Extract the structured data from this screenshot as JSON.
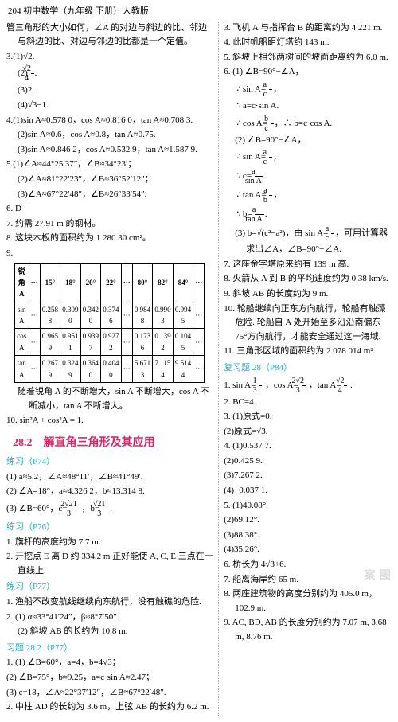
{
  "header": "204 初中数学（九年级 下册）· 人教版",
  "left": {
    "intro": "管三角形的大小如何，∠A 的对边与斜边的比、邻边与斜边的比、对边与邻边的比都是一个定值。",
    "q3": {
      "num": "3.",
      "p1": "(1)√2.",
      "p2_pre": "(2)",
      "p2_frac_n": "√2",
      "p2_frac_d": "4",
      "p2_post": ".",
      "p3": "(3)2.",
      "p4": "(4)√3−1."
    },
    "q4": {
      "num": "4.",
      "p1": "(1)sin A≈0.578 0，cos A≈0.816 0，tan A≈0.708 3.",
      "p2": "(2)sin A≈0.6，cos A≈0.8，tan A≈0.75.",
      "p3": "(3)sin A≈0.846 2，cos A≈0.532 9，tan A≈1.587 9."
    },
    "q5": {
      "num": "5.",
      "p1": "(1)∠A≈44°25′37″，∠B≈34°23′；",
      "p2": "(2)∠A≈81°22′23″，∠B≈36°52′12″；",
      "p3": "(3)∠A≈67°22′48″，∠B≈26°33′54″."
    },
    "q6": "6. D",
    "q7": "7. 约需 27.91 m 的钢材。",
    "q8": "8. 这块木板的面积约为 1 280.30 cm²。",
    "q9": "9.",
    "table": {
      "head": [
        "锐角 A",
        "···",
        "15°",
        "18°",
        "20°",
        "22°",
        "···",
        "80°",
        "82°",
        "84°",
        "···"
      ],
      "rows": [
        [
          "sin A",
          "···",
          "0.258 8",
          "0.309 0",
          "0.342 0",
          "0.374 6",
          "···",
          "0.984 8",
          "0.990 3",
          "0.994 5",
          "···"
        ],
        [
          "cos A",
          "···",
          "0.965 9",
          "0.951 1",
          "0.939 7",
          "0.927 2",
          "···",
          "0.173 6",
          "0.139 2",
          "0.104 5",
          "···"
        ],
        [
          "tan A",
          "···",
          "0.267 9",
          "0.324 9",
          "0.364 0",
          "0.404 0",
          "···",
          "5.671 3",
          "7.115 4",
          "9.514 4",
          "···"
        ]
      ]
    },
    "q9_note": "随着锐角 A 的不断增大，sin A 不断增大，cos A 不断减小，tan A 不断增大。",
    "q10": "10. sin²A + cos²A = 1.",
    "section_title": "28.2　解直角三角形及其应用",
    "practice74_label": "练习（P74）",
    "practice74": {
      "p1": "(1) a≈5.2，∠A≈48°11′，∠B≈41°49′.",
      "p2_pre": "(2) ∠A=18°，a≈4.326 2，b≈13.314 8.",
      "p2b_pre": "(3) ∠B=60°，c=",
      "p2b_f1_n": "2√21",
      "p2b_f1_d": "3",
      "p2b_mid": "，b=",
      "p2b_f2_n": "√21",
      "p2b_f2_d": "3",
      "p2b_post": "."
    },
    "practice76_label": "练习（P76）",
    "practice76": {
      "p1": "1. 旗杆的高度约为 7.7 m.",
      "p2": "2. 开挖点 E 离 D 约 334.2 m 正好能使 A, C, E 三点在一直线上."
    },
    "practice77_label": "练习（P77）",
    "practice77": {
      "p1": "1. 渔船不改变航线继续向东航行，没有触礁的危险.",
      "p2_pre": "2. (1) α≈33°41′24″，β≈8°7′50″.",
      "p3": "(2) 斜坡 AB 的长约为 10.8 m."
    },
    "exercise_label": "习题 28.2（P77）",
    "exercise": {
      "e1_a": "1. (1) ∠B=60°，a=4，b=4√3；",
      "e1_b": "   (2) ∠B=75°，b≈9.25，a=c·sin A≈2.47；",
      "e1_c": "   (3) c=18，∠A≈22°37′12″，∠B≈67°22′48″.",
      "e2": "2. 中柱 AD 的长约为 3.6 m，上弦 AB 的长约为 6.2 m."
    }
  },
  "right": {
    "r3": "3. 飞机 A 与指挥台 B 的距离约为 4 221 m.",
    "r4": "4. 此时帆船距灯塔约 143 m.",
    "r5": "5. 斜坡上相邻两树间的坡面距离约为 6.0 m.",
    "r6": {
      "head": "6. (1) ∠B=90°−∠A，",
      "l1_pre": "∵ sin A=",
      "l1_f_n": "a",
      "l1_f_d": "c",
      "l1_post": "，",
      "l2": "∴ a=c·sin A.",
      "l3_pre": "∵ cos A=",
      "l3_f_n": "b",
      "l3_f_d": "c",
      "l3_post": "，∴ b=c·cos A.",
      "p2_head": "(2) ∠B=90°−∠A，",
      "p2_l1_pre": "∵ sin A=",
      "p2_l1_f_n": "a",
      "p2_l1_f_d": "c",
      "p2_l1_post": "，",
      "p2_l2_pre": "∴ c=",
      "p2_l2_f_n": "a",
      "p2_l2_f_d": "sin A",
      "p2_l2_post": ".",
      "p2_l3_pre": "∵ tan A=",
      "p2_l3_f_n": "a",
      "p2_l3_f_d": "b",
      "p2_l3_post": "，",
      "p2_l4_pre": "∴ b=",
      "p2_l4_f_n": "a",
      "p2_l4_f_d": "tan A",
      "p2_l4_post": ".",
      "p3_pre": "(3) b=√(c²−a²)，由 sin A=",
      "p3_f_n": "a",
      "p3_f_d": "c",
      "p3_post": "，可用计算器求出∠A，∠B=90°−∠A."
    },
    "r7": "7. 这座金字塔原来约有 139 m 高.",
    "r8": "8. 火箭从 A 到 B 的平均速度约为 0.38 km/s.",
    "r9": "9. 斜坡 AB 的长度约为 9 m.",
    "r10": "10. 轮船继续向正东方向航行，轮船有触藻危险. 轮船自 A 处开始至多沿沿南偏东 75°方向航行，才能安全通过这一海域.",
    "r11": "11. 三角形区域的面积约为 2 078 014 m².",
    "review_label": "复习题 28（P84）",
    "review": {
      "rv1_pre": "1. sin A=",
      "rv1_f1_n": "1",
      "rv1_f1_d": "3",
      "rv1_mid1": "，cos A=",
      "rv1_f2_n": "2√2",
      "rv1_f2_d": "3",
      "rv1_mid2": "，tan A=",
      "rv1_f3_n": "√2",
      "rv1_f3_d": "4",
      "rv1_post": ".",
      "rv2": "2. BC=4.",
      "rv3a": "3. (1)原式=0.",
      "rv3b": "   (2)原式=√3.",
      "rv4a": "4. (1)0.537 7.",
      "rv4b": "   (2)0.425 9.",
      "rv4c": "   (3)7.267 2.",
      "rv4d": "   (4)−0.037 1.",
      "rv5a": "5. (1)40.08°.",
      "rv5b": "   (2)69.12°.",
      "rv5c": "   (3)88.38°.",
      "rv5d": "   (4)35.26°.",
      "rv6": "6. 桥长为 4√3+6.",
      "rv7": "7. 船离海岸约 65 m.",
      "rv8": "8. 两座建筑物的高度分别约为 405.0 m，102.9 m.",
      "rv9": "9. AC, BD, AB 的长度分别约为 7.07 m, 3.68 m, 8.76 m."
    }
  },
  "watermark": "案 图"
}
